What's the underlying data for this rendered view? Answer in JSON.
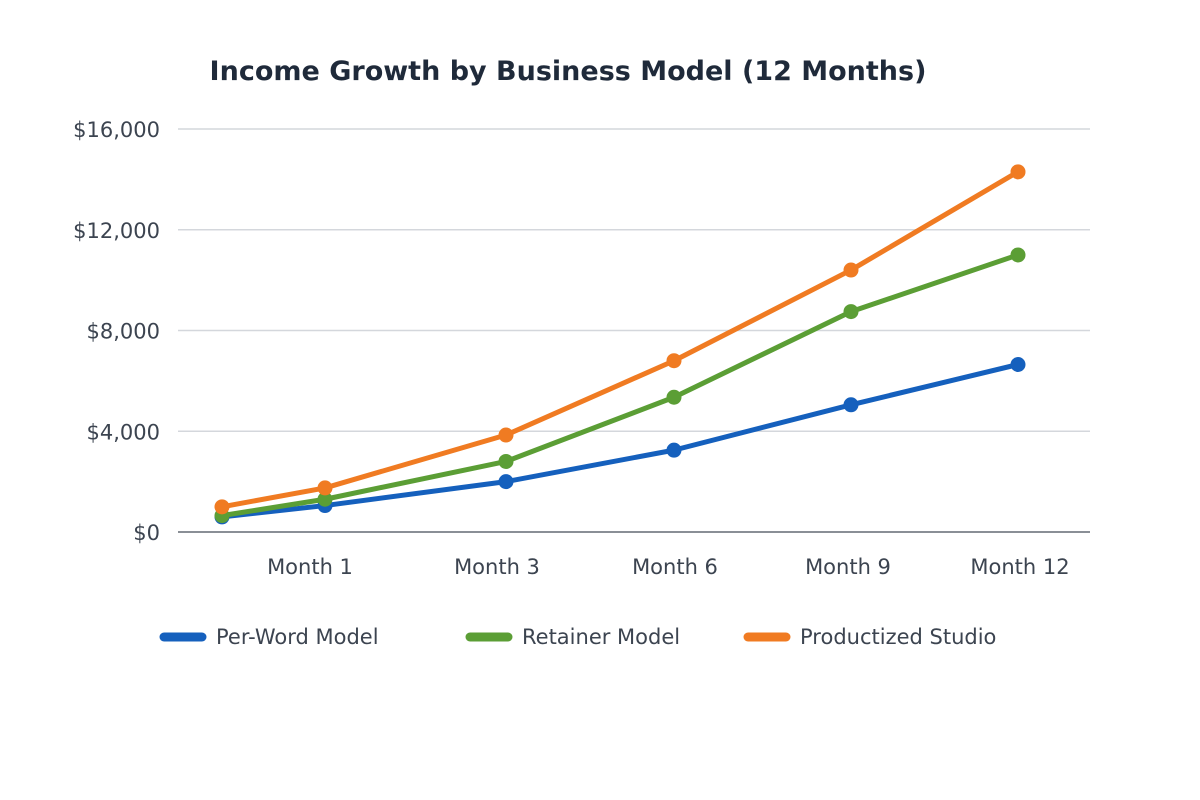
{
  "chart_data": {
    "type": "line",
    "title": "Income Growth by Business Model (12 Months)",
    "xlabel": "",
    "ylabel": "",
    "categories": [
      "",
      "Month 1",
      "Month 3",
      "Month 6",
      "Month 9",
      "Month 12"
    ],
    "y_ticks": [
      "$0",
      "$4,000",
      "$8,000",
      "$12,000",
      "$16,000"
    ],
    "ylim": [
      0,
      16000
    ],
    "grid": true,
    "legend": "bottom",
    "series": [
      {
        "name": "Per-Word Model",
        "color": "#1560bd",
        "values": [
          600,
          1050,
          2000,
          3250,
          5050,
          6650
        ]
      },
      {
        "name": "Retainer Model",
        "color": "#5b9e35",
        "values": [
          650,
          1300,
          2800,
          5350,
          8750,
          11000
        ]
      },
      {
        "name": "Productized Studio",
        "color": "#f07b22",
        "values": [
          1000,
          1750,
          3850,
          6800,
          10400,
          14300
        ]
      }
    ]
  }
}
